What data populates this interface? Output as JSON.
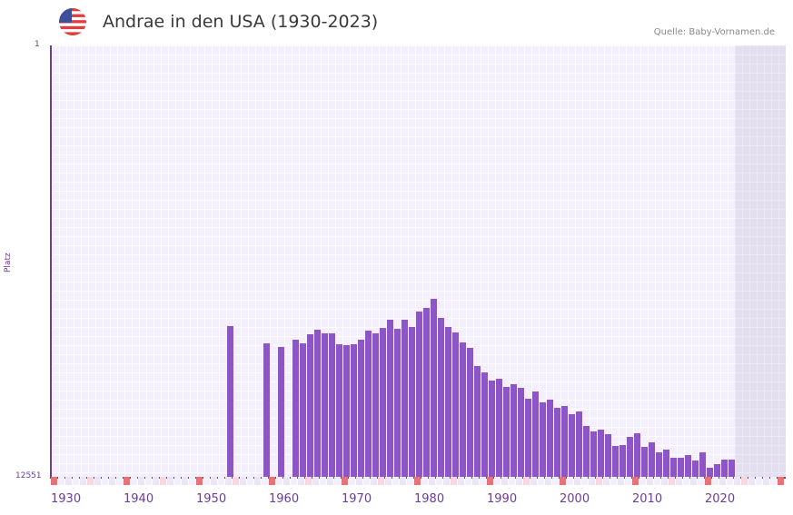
{
  "header": {
    "title": "Andrae in den USA (1930-2023)",
    "source": "Quelle: Baby-Vornamen.de",
    "flag_icon": "us-flag-icon"
  },
  "axes": {
    "y_top_label": "1",
    "y_bottom_label": "12551",
    "y_title": "Platz",
    "x_labels": [
      "1930",
      "1940",
      "1950",
      "1960",
      "1970",
      "1980",
      "1990",
      "2000",
      "2010",
      "2020"
    ]
  },
  "colors": {
    "bar": "#8c56c6",
    "axis": "#6a3d9a",
    "marker_strong": "#e57373",
    "marker_light": "#f7d6df",
    "plot_bg": "#f3effc"
  },
  "chart_data": {
    "type": "bar",
    "title": "Andrae in den USA (1930-2023)",
    "xlabel": "",
    "ylabel": "Platz",
    "ylim": [
      12551,
      1
    ],
    "y_inverted": true,
    "grid": true,
    "first_year": 1929,
    "x": [
      1953,
      1958,
      1960,
      1962,
      1963,
      1964,
      1965,
      1966,
      1967,
      1968,
      1969,
      1970,
      1971,
      1972,
      1973,
      1974,
      1975,
      1976,
      1977,
      1978,
      1979,
      1980,
      1981,
      1982,
      1983,
      1984,
      1985,
      1986,
      1987,
      1988,
      1989,
      1990,
      1991,
      1992,
      1993,
      1994,
      1995,
      1996,
      1997,
      1998,
      1999,
      2000,
      2001,
      2002,
      2003,
      2004,
      2005,
      2006,
      2007,
      2008,
      2009,
      2010,
      2011,
      2012,
      2013,
      2014,
      2015,
      2016,
      2017,
      2018,
      2019,
      2020,
      2021,
      2022
    ],
    "values": [
      8175,
      8677,
      8783,
      8571,
      8677,
      8413,
      8281,
      8387,
      8387,
      8703,
      8730,
      8703,
      8571,
      8307,
      8387,
      8228,
      7990,
      8254,
      7990,
      8201,
      7752,
      7646,
      7382,
      7937,
      8201,
      8360,
      8651,
      8809,
      9337,
      9522,
      9760,
      9707,
      9945,
      9865,
      9971,
      10288,
      10077,
      10394,
      10315,
      10552,
      10499,
      10737,
      10658,
      11081,
      11239,
      11187,
      11319,
      11662,
      11636,
      11398,
      11292,
      11689,
      11557,
      11847,
      11768,
      12006,
      12006,
      11926,
      12085,
      11847,
      12296,
      12190,
      12058,
      12058
    ],
    "shaded_future_from_year": 2023
  }
}
